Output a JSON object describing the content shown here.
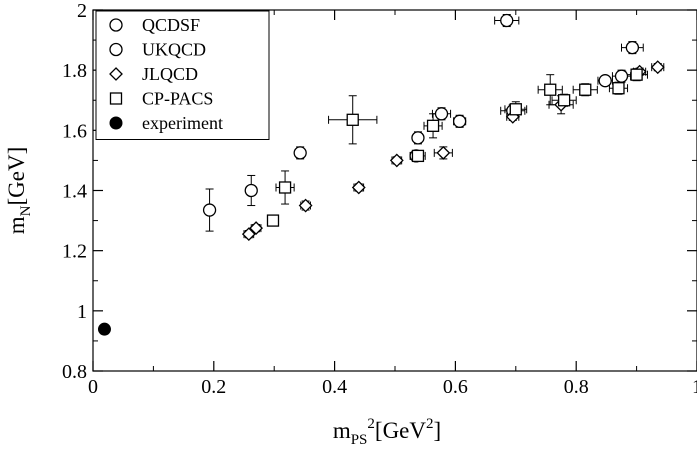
{
  "chart_data": {
    "type": "scatter",
    "title": "",
    "xlabel": {
      "base": "m",
      "sub": "PS",
      "sup": "2",
      "unit_pre": "[GeV",
      "unit_sup": "2",
      "unit_post": "]"
    },
    "ylabel": {
      "base": "m",
      "sub": "N",
      "unit": "[GeV]"
    },
    "xlim": [
      0,
      1
    ],
    "ylim": [
      0.8,
      2.0
    ],
    "x_ticks": [
      0,
      0.2,
      0.4,
      0.6,
      0.8,
      1
    ],
    "x_tick_labels": [
      "0",
      "0.2",
      "0.4",
      "0.6",
      "0.8",
      "1"
    ],
    "y_ticks": [
      0.8,
      1.0,
      1.2,
      1.4,
      1.6,
      1.8,
      2.0
    ],
    "y_tick_labels": [
      "0.8",
      "1",
      "1.2",
      "1.4",
      "1.6",
      "1.8",
      "2"
    ],
    "grid": false,
    "legend_position": "top-left",
    "series": [
      {
        "name": "QCDSF",
        "marker": "circle",
        "points": [
          {
            "x": 0.193,
            "y": 1.335,
            "xerr": 0.0,
            "yerr": 0.07
          },
          {
            "x": 0.262,
            "y": 1.4,
            "xerr": 0.008,
            "yerr": 0.05
          },
          {
            "x": 0.343,
            "y": 1.525,
            "xerr": 0.008,
            "yerr": 0.02
          },
          {
            "x": 0.538,
            "y": 1.575,
            "xerr": 0.0,
            "yerr": 0.02
          },
          {
            "x": 0.577,
            "y": 1.655,
            "xerr": 0.015,
            "yerr": 0.02
          },
          {
            "x": 0.607,
            "y": 1.63,
            "xerr": 0.01,
            "yerr": 0.02
          },
          {
            "x": 0.685,
            "y": 1.965,
            "xerr": 0.02,
            "yerr": 0.02
          },
          {
            "x": 0.848,
            "y": 1.765,
            "xerr": 0.012,
            "yerr": 0.015
          },
          {
            "x": 0.893,
            "y": 1.875,
            "xerr": 0.018,
            "yerr": 0.02
          }
        ]
      },
      {
        "name": "UKQCD",
        "marker": "circle",
        "points": [
          {
            "x": 0.535,
            "y": 1.515,
            "xerr": 0.01,
            "yerr": 0.015
          },
          {
            "x": 0.695,
            "y": 1.665,
            "xerr": 0.02,
            "yerr": 0.02
          },
          {
            "x": 0.875,
            "y": 1.78,
            "xerr": 0.015,
            "yerr": 0.02
          }
        ]
      },
      {
        "name": "JLQCD",
        "marker": "diamond",
        "points": [
          {
            "x": 0.258,
            "y": 1.255,
            "xerr": 0.008,
            "yerr": 0.012
          },
          {
            "x": 0.27,
            "y": 1.275,
            "xerr": 0.008,
            "yerr": 0.012
          },
          {
            "x": 0.352,
            "y": 1.35,
            "xerr": 0.008,
            "yerr": 0.015
          },
          {
            "x": 0.44,
            "y": 1.41,
            "xerr": 0.008,
            "yerr": 0.012
          },
          {
            "x": 0.503,
            "y": 1.5,
            "xerr": 0.008,
            "yerr": 0.012
          },
          {
            "x": 0.58,
            "y": 1.525,
            "xerr": 0.015,
            "yerr": 0.02
          },
          {
            "x": 0.695,
            "y": 1.645,
            "xerr": 0.01,
            "yerr": 0.012
          },
          {
            "x": 0.775,
            "y": 1.685,
            "xerr": 0.02,
            "yerr": 0.03
          },
          {
            "x": 0.905,
            "y": 1.795,
            "xerr": 0.01,
            "yerr": 0.012
          },
          {
            "x": 0.935,
            "y": 1.81,
            "xerr": 0.01,
            "yerr": 0.012
          }
        ]
      },
      {
        "name": "CP-PACS",
        "marker": "square",
        "points": [
          {
            "x": 0.298,
            "y": 1.3,
            "xerr": 0.008,
            "yerr": 0.015
          },
          {
            "x": 0.318,
            "y": 1.41,
            "xerr": 0.015,
            "yerr": 0.055
          },
          {
            "x": 0.43,
            "y": 1.635,
            "xerr": 0.04,
            "yerr": 0.08
          },
          {
            "x": 0.538,
            "y": 1.515,
            "xerr": 0.012,
            "yerr": 0.015
          },
          {
            "x": 0.563,
            "y": 1.615,
            "xerr": 0.015,
            "yerr": 0.04
          },
          {
            "x": 0.7,
            "y": 1.67,
            "xerr": 0.018,
            "yerr": 0.025
          },
          {
            "x": 0.757,
            "y": 1.735,
            "xerr": 0.02,
            "yerr": 0.05
          },
          {
            "x": 0.78,
            "y": 1.7,
            "xerr": 0.02,
            "yerr": 0.02
          },
          {
            "x": 0.815,
            "y": 1.735,
            "xerr": 0.02,
            "yerr": 0.02
          },
          {
            "x": 0.87,
            "y": 1.74,
            "xerr": 0.015,
            "yerr": 0.02
          },
          {
            "x": 0.9,
            "y": 1.785,
            "xerr": 0.018,
            "yerr": 0.02
          }
        ]
      },
      {
        "name": "experiment",
        "marker": "filled-circle",
        "points": [
          {
            "x": 0.019,
            "y": 0.939,
            "xerr": 0,
            "yerr": 0
          }
        ]
      }
    ]
  }
}
